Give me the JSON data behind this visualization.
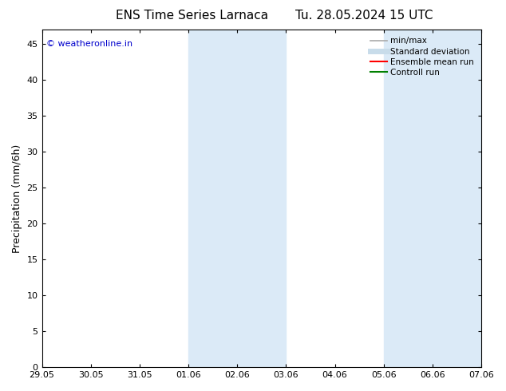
{
  "title_left": "ENS Time Series Larnaca",
  "title_right": "Tu. 28.05.2024 15 UTC",
  "ylabel": "Precipitation (mm/6h)",
  "x_tick_labels": [
    "29.05",
    "30.05",
    "31.05",
    "01.06",
    "02.06",
    "03.06",
    "04.06",
    "05.06",
    "06.06",
    "07.06"
  ],
  "y_ticks": [
    0,
    5,
    10,
    15,
    20,
    25,
    30,
    35,
    40,
    45
  ],
  "ylim": [
    0,
    47
  ],
  "xlim": [
    0,
    9
  ],
  "shaded_regions": [
    {
      "x_start": 3.0,
      "x_end": 5.0,
      "color": "#dbeaf7"
    },
    {
      "x_start": 7.0,
      "x_end": 9.0,
      "color": "#dbeaf7"
    }
  ],
  "legend_items": [
    {
      "label": "min/max",
      "color": "#aaaaaa",
      "lw": 1.2,
      "style": "solid"
    },
    {
      "label": "Standard deviation",
      "color": "#c8dcea",
      "lw": 5,
      "style": "solid"
    },
    {
      "label": "Ensemble mean run",
      "color": "#ff0000",
      "lw": 1.5,
      "style": "solid"
    },
    {
      "label": "Controll run",
      "color": "#008000",
      "lw": 1.5,
      "style": "solid"
    }
  ],
  "watermark_text": "© weatheronline.in",
  "watermark_color": "#0000cc",
  "watermark_fontsize": 8,
  "background_color": "#ffffff",
  "plot_bg_color": "#ffffff",
  "tick_label_fontsize": 8,
  "axis_label_fontsize": 9,
  "title_fontsize": 11
}
